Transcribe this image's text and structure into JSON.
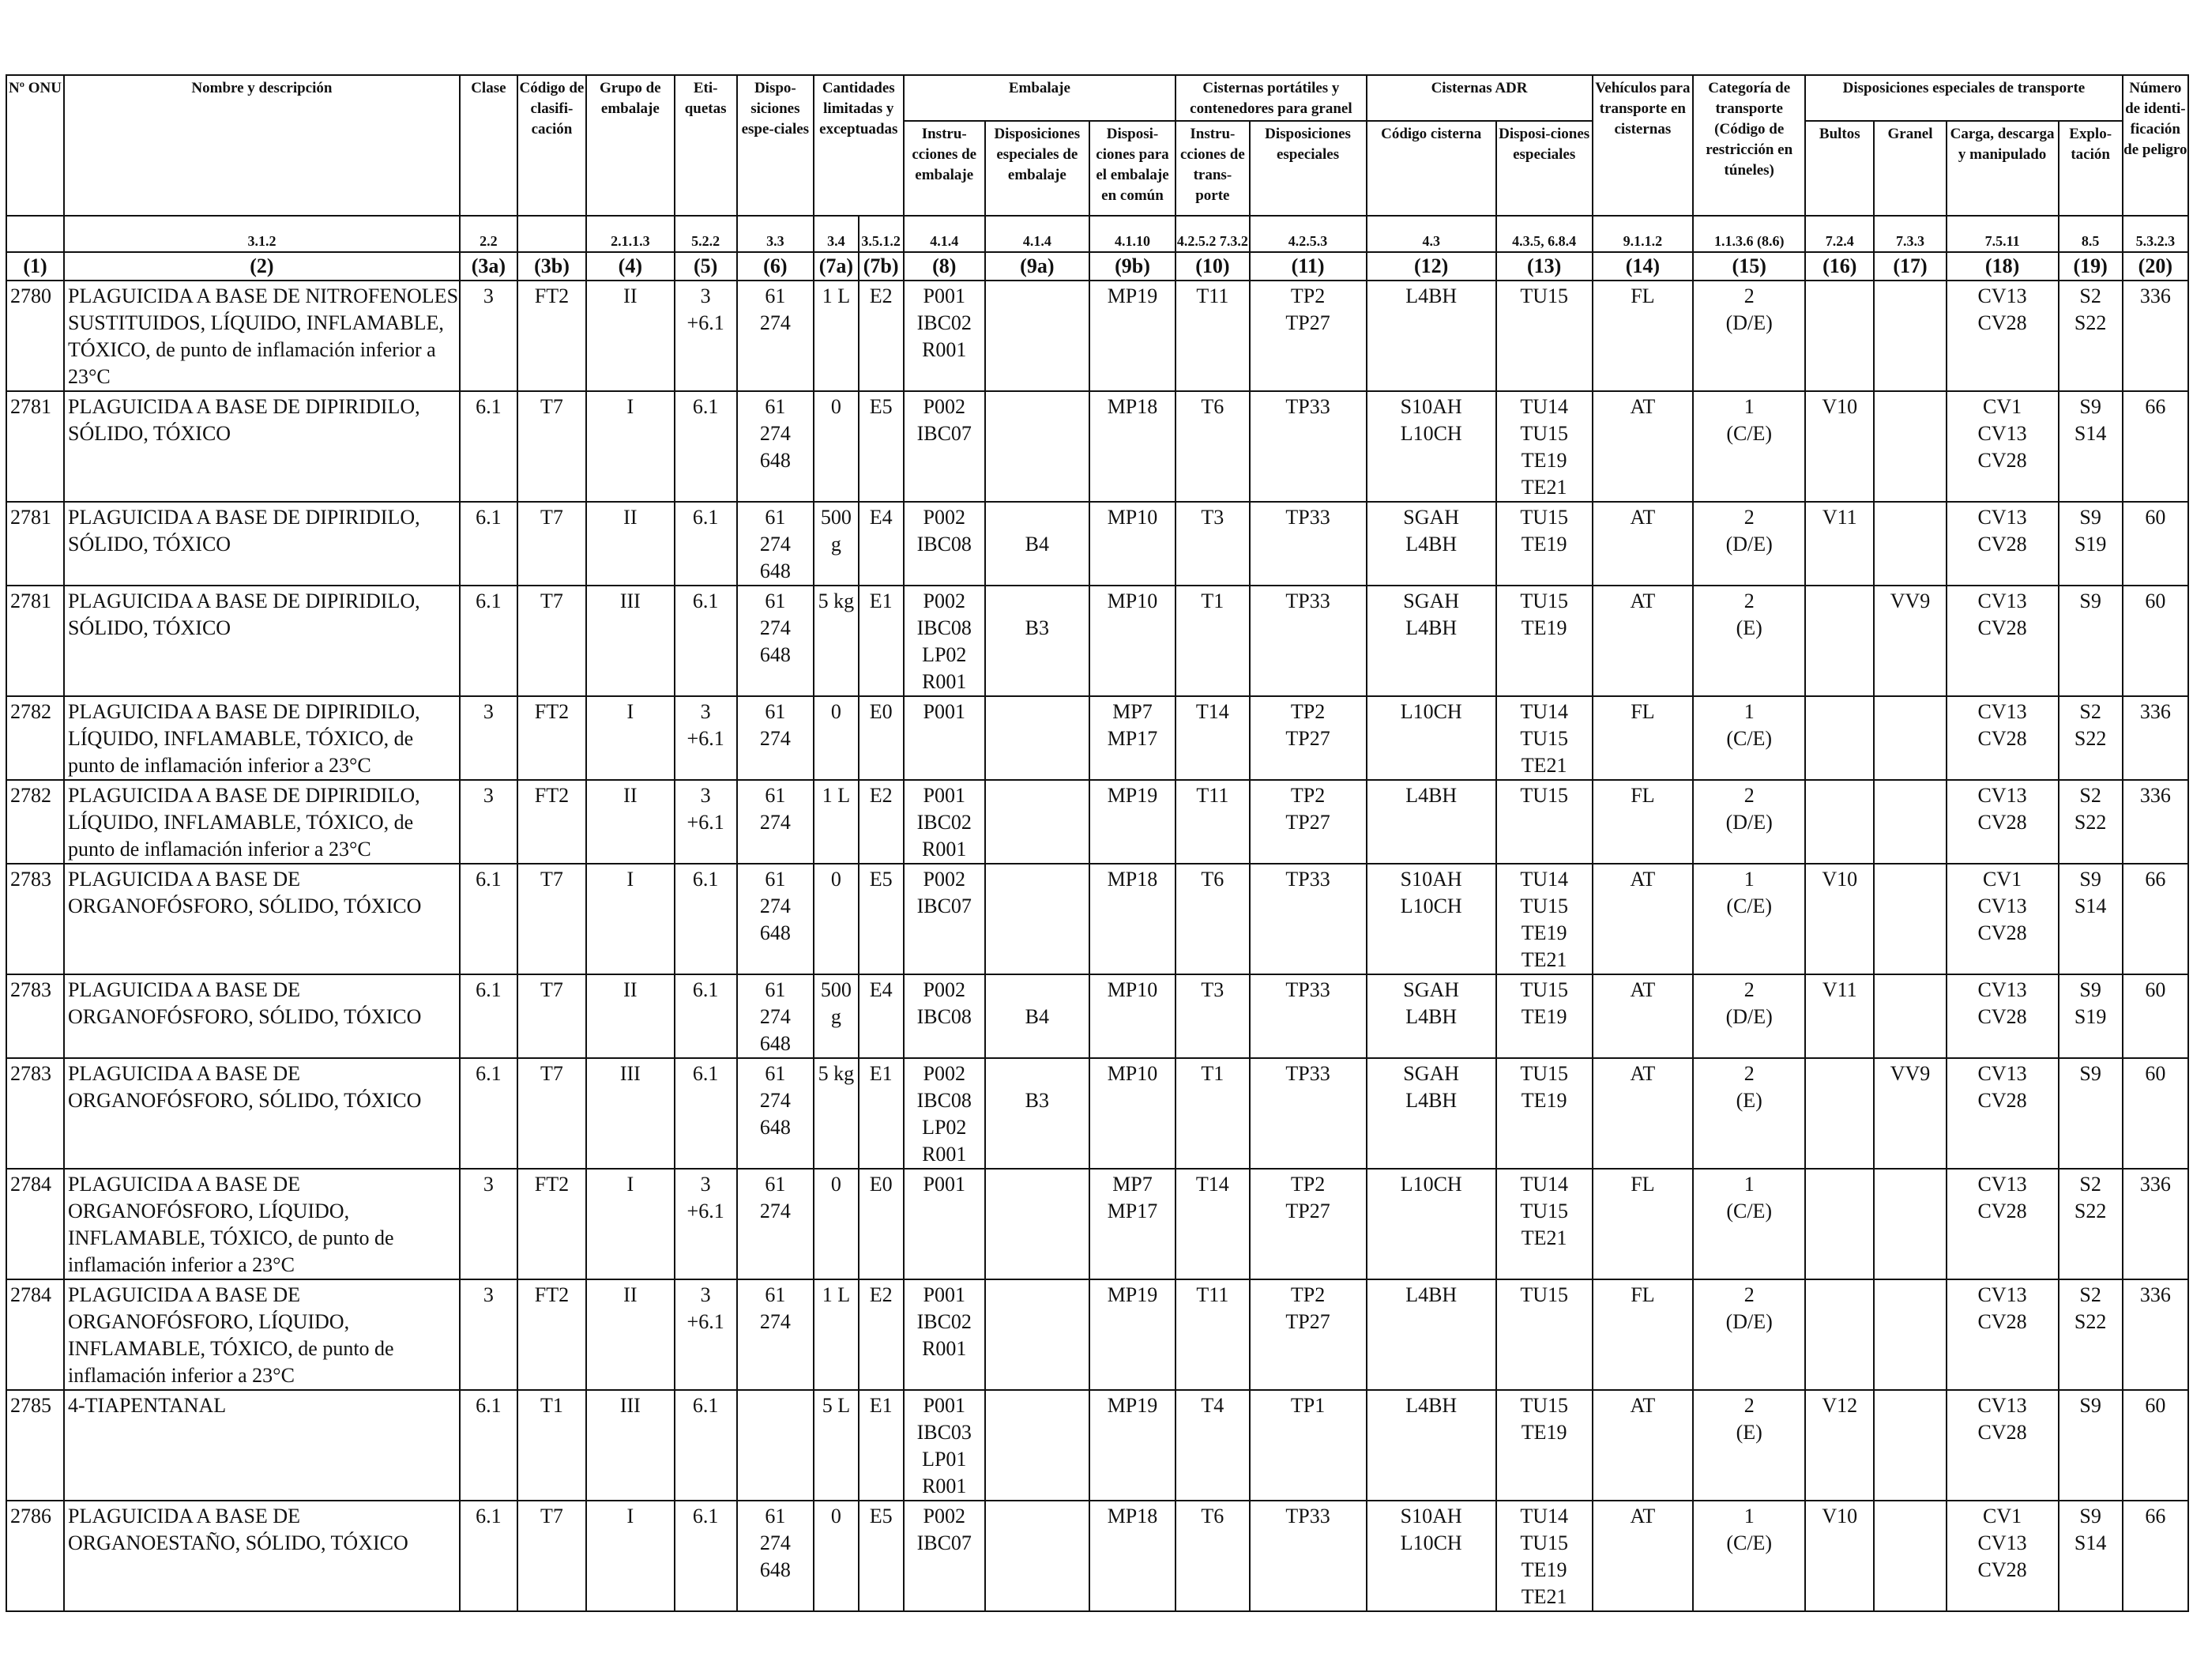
{
  "headers": {
    "un": "Nº ONU",
    "name": "Nombre y descripción",
    "clase": "Clase",
    "codigo": "Código de clasifi-cación",
    "grupo": "Grupo de embalaje",
    "etiquetas": "Eti-quetas",
    "disposiciones": "Dispo-siciones espe-ciales",
    "cantidades": "Cantidades limitadas y exceptuadas",
    "embalaje": "Embalaje",
    "instrucciones_embalaje": "Instru-cciones de embalaje",
    "disp_esp_embalaje": "Disposiciones especiales de embalaje",
    "disp_embalaje_comun": "Disposi-ciones para el embalaje en común",
    "cisternas_portatiles": "Cisternas portátiles y contenedores para granel",
    "instr_transporte": "Instru-cciones de trans-porte",
    "disp_esp_cisternas": "Disposiciones especiales",
    "cisternas_adr": "Cisternas ADR",
    "codigo_cisterna": "Código cisterna",
    "disp_esp_adr": "Disposi-ciones especiales",
    "vehiculos": "Vehículos para transporte en cisternas",
    "categoria": "Categoría de transporte (Código de restricción en túneles)",
    "disp_transporte": "Disposiciones especiales de transporte",
    "bultos": "Bultos",
    "granel": "Granel",
    "carga": "Carga, descarga y manipulado",
    "explotacion": "Explo-tación",
    "numero_peligro": "Número de identi-ficación de peligro"
  },
  "refs": [
    "",
    "3.1.2",
    "2.2",
    "",
    "2.1.1.3",
    "5.2.2",
    "3.3",
    "3.4",
    "3.5.1.2",
    "4.1.4",
    "4.1.4",
    "4.1.10",
    "4.2.5.2 7.3.2",
    "4.2.5.3",
    "4.3",
    "4.3.5, 6.8.4",
    "9.1.1.2",
    "1.1.3.6 (8.6)",
    "7.2.4",
    "7.3.3",
    "7.5.11",
    "8.5",
    "5.3.2.3"
  ],
  "col_numbers": [
    "(1)",
    "(2)",
    "(3a)",
    "(3b)",
    "(4)",
    "(5)",
    "(6)",
    "(7a)",
    "(7b)",
    "(8)",
    "(9a)",
    "(9b)",
    "(10)",
    "(11)",
    "(12)",
    "(13)",
    "(14)",
    "(15)",
    "(16)",
    "(17)",
    "(18)",
    "(19)",
    "(20)"
  ],
  "rows": [
    [
      "2780",
      "PLAGUICIDA A BASE DE NITROFENOLES SUSTITUIDOS, LÍQUIDO, INFLAMABLE, TÓXICO, de punto de inflamación inferior a 23°C",
      "3",
      "FT2",
      "II",
      "3\n+6.1",
      "61\n274",
      "1 L",
      "E2",
      "P001\nIBC02\nR001",
      "",
      "MP19",
      "T11",
      "TP2\nTP27",
      "L4BH",
      "TU15",
      "FL",
      "2\n(D/E)",
      "",
      "",
      "CV13\nCV28",
      "S2\nS22",
      "336"
    ],
    [
      "2781",
      "PLAGUICIDA A BASE DE DIPIRIDILO, SÓLIDO, TÓXICO",
      "6.1",
      "T7",
      "I",
      "6.1",
      "61\n274\n648",
      "0",
      "E5",
      "P002\nIBC07",
      "",
      "MP18",
      "T6",
      "TP33",
      "S10AH\nL10CH",
      "TU14\nTU15\nTE19\nTE21",
      "AT",
      "1\n(C/E)",
      "V10",
      "",
      "CV1\nCV13\nCV28",
      "S9\nS14",
      "66"
    ],
    [
      "2781",
      "PLAGUICIDA A BASE DE DIPIRIDILO, SÓLIDO, TÓXICO",
      "6.1",
      "T7",
      "II",
      "6.1",
      "61\n274\n648",
      "500\ng",
      "E4",
      "P002\nIBC08",
      "\nB4",
      "MP10",
      "T3",
      "TP33",
      "SGAH\nL4BH",
      "TU15\nTE19",
      "AT",
      "2\n(D/E)",
      "V11",
      "",
      "CV13\nCV28",
      "S9\nS19",
      "60"
    ],
    [
      "2781",
      "PLAGUICIDA A BASE DE DIPIRIDILO, SÓLIDO, TÓXICO",
      "6.1",
      "T7",
      "III",
      "6.1",
      "61\n274\n648",
      "5 kg",
      "E1",
      "P002\nIBC08\nLP02\nR001",
      "\nB3",
      "MP10",
      "T1",
      "TP33",
      "SGAH\nL4BH",
      "TU15\nTE19",
      "AT",
      "2\n(E)",
      "",
      "VV9",
      "CV13\nCV28",
      "S9",
      "60"
    ],
    [
      "2782",
      "PLAGUICIDA A BASE DE DIPIRIDILO, LÍQUIDO, INFLAMABLE, TÓXICO, de punto de inflamación inferior a 23°C",
      "3",
      "FT2",
      "I",
      "3\n+6.1",
      "61\n274",
      "0",
      "E0",
      "P001",
      "",
      "MP7\nMP17",
      "T14",
      "TP2\nTP27",
      "L10CH",
      "TU14\nTU15\nTE21",
      "FL",
      "1\n(C/E)",
      "",
      "",
      "CV13\nCV28",
      "S2\nS22",
      "336"
    ],
    [
      "2782",
      "PLAGUICIDA A BASE DE DIPIRIDILO, LÍQUIDO, INFLAMABLE, TÓXICO, de punto de inflamación inferior a 23°C",
      "3",
      "FT2",
      "II",
      "3\n+6.1",
      "61\n274",
      "1 L",
      "E2",
      "P001\nIBC02\nR001",
      "",
      "MP19",
      "T11",
      "TP2\nTP27",
      "L4BH",
      "TU15",
      "FL",
      "2\n(D/E)",
      "",
      "",
      "CV13\nCV28",
      "S2\nS22",
      "336"
    ],
    [
      "2783",
      "PLAGUICIDA A BASE DE ORGANOFÓSFORO, SÓLIDO, TÓXICO",
      "6.1",
      "T7",
      "I",
      "6.1",
      "61\n274\n648",
      "0",
      "E5",
      "P002\nIBC07",
      "",
      "MP18",
      "T6",
      "TP33",
      "S10AH\nL10CH",
      "TU14\nTU15\nTE19\nTE21",
      "AT",
      "1\n(C/E)",
      "V10",
      "",
      "CV1\nCV13\nCV28",
      "S9\nS14",
      "66"
    ],
    [
      "2783",
      "PLAGUICIDA A BASE DE ORGANOFÓSFORO, SÓLIDO, TÓXICO",
      "6.1",
      "T7",
      "II",
      "6.1",
      "61\n274\n648",
      "500\ng",
      "E4",
      "P002\nIBC08",
      "\nB4",
      "MP10",
      "T3",
      "TP33",
      "SGAH\nL4BH",
      "TU15\nTE19",
      "AT",
      "2\n(D/E)",
      "V11",
      "",
      "CV13\nCV28",
      "S9\nS19",
      "60"
    ],
    [
      "2783",
      "PLAGUICIDA A BASE DE ORGANOFÓSFORO, SÓLIDO, TÓXICO",
      "6.1",
      "T7",
      "III",
      "6.1",
      "61\n274\n648",
      "5 kg",
      "E1",
      "P002\nIBC08\nLP02\nR001",
      "\nB3",
      "MP10",
      "T1",
      "TP33",
      "SGAH\nL4BH",
      "TU15\nTE19",
      "AT",
      "2\n(E)",
      "",
      "VV9",
      "CV13\nCV28",
      "S9",
      "60"
    ],
    [
      "2784",
      "PLAGUICIDA A BASE DE ORGANOFÓSFORO, LÍQUIDO, INFLAMABLE, TÓXICO, de punto de inflamación inferior a 23°C",
      "3",
      "FT2",
      "I",
      "3\n+6.1",
      "61\n274",
      "0",
      "E0",
      "P001",
      "",
      "MP7\nMP17",
      "T14",
      "TP2\nTP27",
      "L10CH",
      "TU14\nTU15\nTE21",
      "FL",
      "1\n(C/E)",
      "",
      "",
      "CV13\nCV28",
      "S2\nS22",
      "336"
    ],
    [
      "2784",
      "PLAGUICIDA A BASE DE ORGANOFÓSFORO, LÍQUIDO, INFLAMABLE, TÓXICO, de punto de inflamación inferior a 23°C",
      "3",
      "FT2",
      "II",
      "3\n+6.1",
      "61\n274",
      "1 L",
      "E2",
      "P001\nIBC02\nR001",
      "",
      "MP19",
      "T11",
      "TP2\nTP27",
      "L4BH",
      "TU15",
      "FL",
      "2\n(D/E)",
      "",
      "",
      "CV13\nCV28",
      "S2\nS22",
      "336"
    ],
    [
      "2785",
      "4-TIAPENTANAL",
      "6.1",
      "T1",
      "III",
      "6.1",
      "",
      "5 L",
      "E1",
      "P001\nIBC03\nLP01\nR001",
      "",
      "MP19",
      "T4",
      "TP1",
      "L4BH",
      "TU15\nTE19",
      "AT",
      "2\n(E)",
      "V12",
      "",
      "CV13\nCV28",
      "S9",
      "60"
    ],
    [
      "2786",
      "PLAGUICIDA A BASE DE ORGANOESTAÑO, SÓLIDO, TÓXICO",
      "6.1",
      "T7",
      "I",
      "6.1",
      "61\n274\n648",
      "0",
      "E5",
      "P002\nIBC07",
      "",
      "MP18",
      "T6",
      "TP33",
      "S10AH\nL10CH",
      "TU14\nTU15\nTE19\nTE21",
      "AT",
      "1\n(C/E)",
      "V10",
      "",
      "CV1\nCV13\nCV28",
      "S9\nS14",
      "66"
    ]
  ]
}
